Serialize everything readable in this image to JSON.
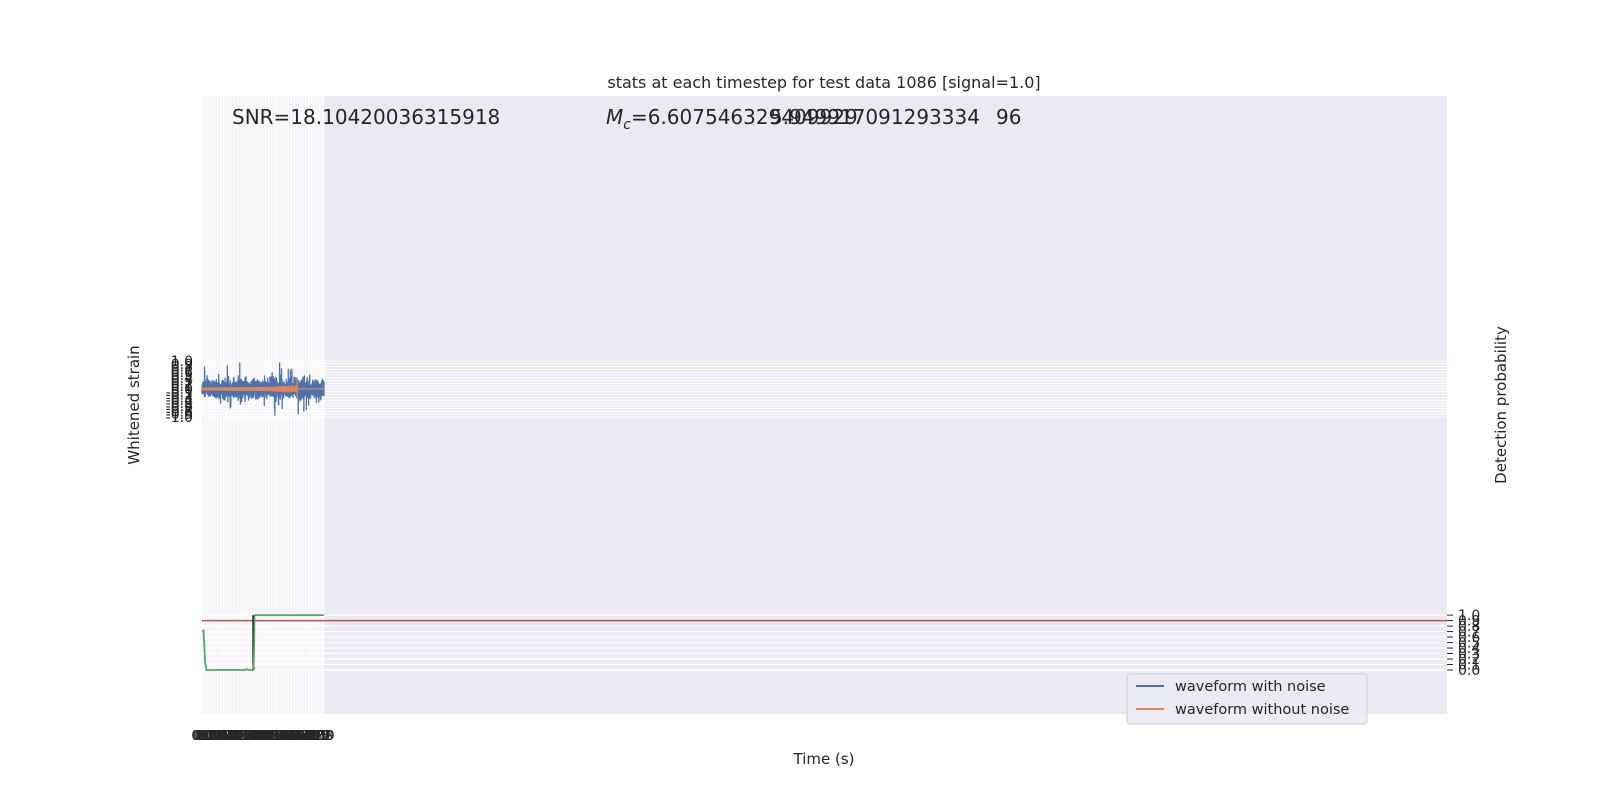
{
  "chart_data": {
    "type": "line",
    "title": "stats at each timestep for test data 1086 [signal=1.0]",
    "xlabel": "Time (s)",
    "ylabel": "Whitened strain",
    "ylabel_right": "Detection probability",
    "xlim": [
      0.0,
      7.9
    ],
    "ylim": [
      -1.05,
      1.05
    ],
    "ylim_right": [
      -0.045,
      1.045
    ],
    "x_ticks": [
      "0.0",
      "0.1",
      "0.2",
      "0.3",
      "0.4",
      "0.5",
      "0.6",
      "0.7",
      "0.8",
      "0.9",
      "1.0",
      "1.1",
      "1.2",
      "1.3",
      "1.4",
      "1.5",
      "1.6",
      "1.7",
      "1.8",
      "1.9",
      "2.0",
      "2.1",
      "2.2",
      "2.3",
      "2.4",
      "2.5",
      "2.6",
      "2.7",
      "2.8",
      "2.9",
      "3.0",
      "3.1",
      "3.2",
      "3.3",
      "3.4",
      "3.5",
      "3.6",
      "3.7",
      "3.8",
      "3.9",
      "4.0",
      "4.1",
      "4.2",
      "4.3",
      "4.4",
      "4.5",
      "4.6",
      "4.7",
      "4.8",
      "4.9",
      "5.0",
      "5.1",
      "5.2",
      "5.3",
      "5.4",
      "5.5",
      "5.6",
      "5.7",
      "5.8",
      "5.9",
      "6.0",
      "6.1",
      "6.2",
      "6.3",
      "6.4",
      "6.5",
      "6.6",
      "6.7",
      "6.8",
      "6.9",
      "7.0",
      "7.1",
      "7.2",
      "7.3",
      "7.4",
      "7.5",
      "7.6",
      "7.7",
      "7.8",
      "7.9"
    ],
    "y_ticks": [
      "1.0",
      "0.9",
      "0.8",
      "0.7",
      "0.6",
      "0.5",
      "0.4",
      "0.3",
      "0.2",
      "0.1",
      "0.0",
      "-0.1",
      "-0.2",
      "-0.3",
      "-0.4",
      "-0.5",
      "-0.6",
      "-0.7",
      "-0.8",
      "-0.9",
      "-1.0"
    ],
    "y_ticks_right": [
      "1.0",
      "0.9",
      "0.8",
      "0.7",
      "0.6",
      "0.5",
      "0.4",
      "0.3",
      "0.2",
      "0.1",
      "0.0"
    ],
    "annotations": {
      "snr": "SNR=18.10420036315918",
      "mc_symbol": "M",
      "mc_sub": "c",
      "mc_value": "=6.607546329409929",
      "mc_overlap": "5.949917091293334",
      "mc_tail": "96"
    },
    "series": [
      {
        "name": "waveform with noise",
        "color": "#4c72b0",
        "noise_amplitude_typical": 0.4,
        "noise_amplitude_peak": 0.95
      },
      {
        "name": "waveform without noise",
        "color": "#dd8452",
        "chirp_start_amplitude": 0.03,
        "chirp_peak_amplitude": 0.43,
        "merger_time": 6.15
      },
      {
        "name": "detection probability",
        "color": "#55a868",
        "x": [
          0.0,
          0.05,
          0.1,
          0.2,
          0.3,
          1.2,
          1.3,
          2.7,
          2.8,
          2.85,
          2.95,
          3.05,
          3.15,
          3.3,
          3.35,
          3.38,
          3.4,
          7.9
        ],
        "y": [
          0.7,
          0.71,
          0.72,
          0.14,
          0.0,
          0.0,
          0.002,
          0.0,
          0.003,
          0.01,
          0.013,
          0.0,
          0.0,
          0.0,
          0.12,
          0.5,
          1.0,
          1.0
        ]
      }
    ],
    "threshold": {
      "value": 0.9,
      "color": "#c44e52"
    },
    "vline": {
      "x": 3.33,
      "color": "#000000"
    },
    "grid": true,
    "legend_position": "lower right",
    "legend": [
      "waveform with noise",
      "waveform without noise"
    ],
    "colors": {
      "background": "#eaeaf2",
      "grid": "#ffffff",
      "noise": "#4c72b0",
      "signal": "#dd8452",
      "prob": "#55a868",
      "threshold": "#c44e52",
      "vline": "#000000"
    }
  }
}
